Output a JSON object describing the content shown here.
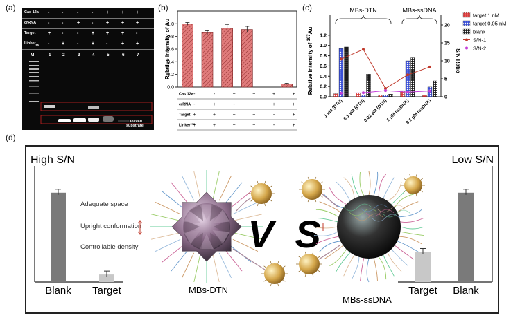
{
  "panel_labels": {
    "a": "(a)",
    "b": "(b)",
    "c": "(c)",
    "d": "(d)"
  },
  "panel_a": {
    "row_labels": [
      "Cas 12a",
      "crRNA",
      "Target",
      "Linker"
    ],
    "linker_sub": "ss",
    "rows": [
      [
        "-",
        "-",
        "-",
        "-",
        "+",
        "+",
        "+"
      ],
      [
        "-",
        "-",
        "+",
        "-",
        "+",
        "+",
        "+"
      ],
      [
        "+",
        "-",
        "-",
        "+",
        "+",
        "+",
        "-"
      ],
      [
        "-",
        "+",
        "-",
        "+",
        "-",
        "+",
        "+"
      ]
    ],
    "lane_labels": [
      "M",
      "1",
      "2",
      "3",
      "4",
      "5",
      "6",
      "7"
    ],
    "cleaved_text": [
      "Cleaved",
      "substrate"
    ]
  },
  "panel_b": {
    "ylabel": "Relative intensity of Au",
    "yticks": [
      "0.0",
      "0.2",
      "0.4",
      "0.6",
      "0.8",
      "1.0"
    ],
    "values": [
      1.0,
      0.86,
      0.93,
      0.91,
      0.0,
      0.05
    ],
    "errors": [
      0.02,
      0.03,
      0.06,
      0.05,
      0.0,
      0.01
    ],
    "bar_color": "#e07b7b",
    "table_rows": [
      "Cas 12a",
      "crRNA",
      "Target",
      "Linker"
    ],
    "linker_sup": "ssa",
    "table": [
      [
        "-",
        "-",
        "+",
        "+",
        "+",
        "+"
      ],
      [
        "-",
        "+",
        "-",
        "+",
        "+",
        "+"
      ],
      [
        "+",
        "+",
        "+",
        "+",
        "-",
        "+"
      ],
      [
        "+",
        "+",
        "+",
        "+",
        "-",
        "+"
      ]
    ]
  },
  "chart_data": {
    "type": "bar",
    "title": "",
    "group_labels": [
      "MBs-DTN",
      "MBs-ssDNA"
    ],
    "categories": [
      "1 μM (DTN)",
      "0.1 μM (DTN)",
      "0.01 μM (DTN)",
      "1 μM (ssDNA)",
      "0.1 μM (ssDNA)"
    ],
    "ylabel_prefix": "Relative intensity of ",
    "ylabel_sup": "197",
    "ylabel_suffix": "Au",
    "y2label": "S/N Ratio",
    "ylim": [
      0,
      1.4
    ],
    "y2lim": [
      0,
      20
    ],
    "yticks": [
      "0.0",
      "0.2",
      "0.4",
      "0.6",
      "0.8",
      "1.0",
      "1.2"
    ],
    "y2ticks": [
      "0",
      "5",
      "10",
      "15",
      "20"
    ],
    "series": [
      {
        "name": "target 1 nM",
        "values": [
          0.06,
          0.07,
          0.03,
          0.12,
          0.03
        ],
        "color": "#d93b3b"
      },
      {
        "name": "target 0.05 nM",
        "values": [
          0.94,
          0.03,
          0.03,
          0.7,
          0.19
        ],
        "color": "#3a4fd6"
      },
      {
        "name": "blank",
        "values": [
          0.97,
          0.44,
          0.05,
          0.76,
          0.31
        ],
        "color": "#1a1a1a"
      }
    ],
    "lines": [
      {
        "name": "S/N-1",
        "values": [
          10.5,
          13.2,
          2.3,
          6.1,
          8.3
        ],
        "color": "#c0392b"
      },
      {
        "name": "S/N-2",
        "values": [
          1.0,
          1.1,
          1.7,
          1.3,
          1.6
        ],
        "color": "#c440d8"
      }
    ]
  },
  "panel_d": {
    "left_title": "High S/N",
    "right_title": "Low S/N",
    "left_bars": [
      {
        "label": "Blank",
        "value": 0.95,
        "color": "#7a7a7a"
      },
      {
        "label": "Target",
        "value": 0.08,
        "color": "#c8c8c8"
      }
    ],
    "right_bars": [
      {
        "label": "Target",
        "value": 0.32,
        "color": "#c8c8c8"
      },
      {
        "label": "Blank",
        "value": 0.95,
        "color": "#7a7a7a"
      }
    ],
    "features": [
      "Adequate space",
      "Upright conformation",
      "Controllable density"
    ],
    "vs_v": "V",
    "vs_s": "S",
    "left_caption": "MBs-DTN",
    "right_caption": "MBs-ssDNA"
  }
}
